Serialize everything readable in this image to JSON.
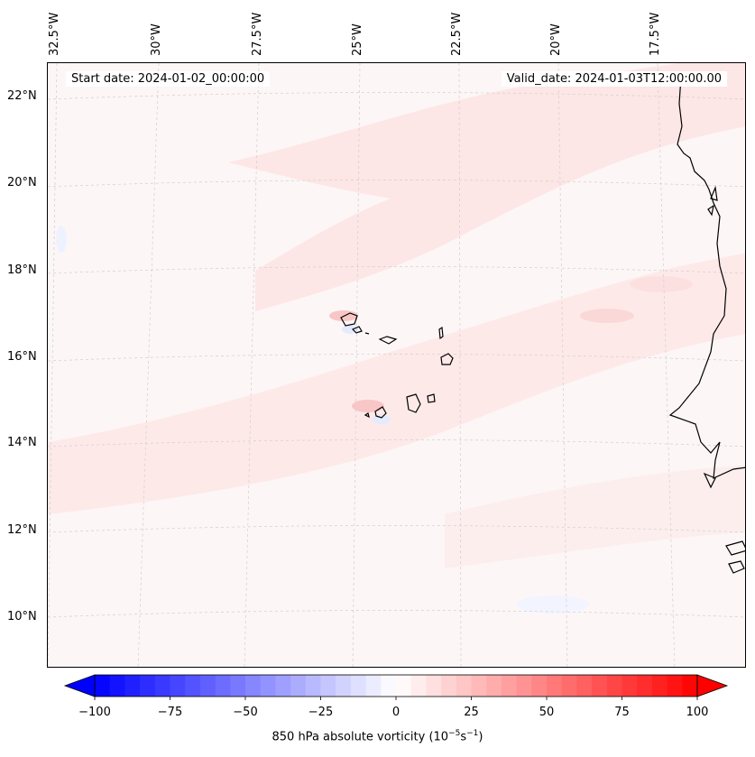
{
  "map": {
    "start_date": "Start date: 2024-01-02_00:00:00",
    "valid_date": "Valid_date: 2024-01-03T12:00:00.00",
    "longitude_labels": [
      "32.5°W",
      "30°W",
      "27.5°W",
      "25°W",
      "22.5°W",
      "20°W",
      "17.5°W"
    ],
    "latitude_labels": [
      "22°N",
      "20°N",
      "18°N",
      "16°N",
      "14°N",
      "12°N",
      "10°N"
    ],
    "field": "850 hPa absolute vorticity",
    "colors": {
      "positive": "#ff0000",
      "negative": "#0000ff",
      "neutral": "#ffffff",
      "coastline": "#000000"
    }
  },
  "colorbar": {
    "label_prefix": "850 hPa absolute vorticity (10",
    "label_exp1": "−5",
    "label_mid": "s",
    "label_exp2": "−1",
    "label_suffix": ")",
    "ticks": [
      "−100",
      "−75",
      "−50",
      "−25",
      "0",
      "25",
      "50",
      "75",
      "100"
    ],
    "min": -100,
    "max": 100,
    "step": 5,
    "cmap": "bwr"
  }
}
